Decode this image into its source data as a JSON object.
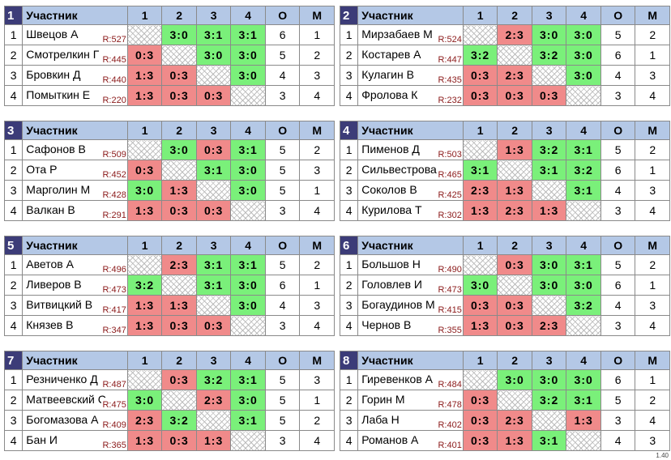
{
  "header": {
    "participant": "Участник",
    "cols": [
      "1",
      "2",
      "3",
      "4"
    ],
    "points": "О",
    "place": "М"
  },
  "groups": [
    {
      "num": "1",
      "rows": [
        {
          "n": "1",
          "name": "Швецов А",
          "rating": "R:527",
          "scores": [
            "",
            "3:0",
            "3:1",
            "3:1"
          ],
          "res": [
            "self",
            "win",
            "win",
            "win"
          ],
          "o": "6",
          "m": "1"
        },
        {
          "n": "2",
          "name": "Смотрелкин Г",
          "rating": "R:445",
          "scores": [
            "0:3",
            "",
            "3:0",
            "3:0"
          ],
          "res": [
            "loss",
            "self",
            "win",
            "win"
          ],
          "o": "5",
          "m": "2"
        },
        {
          "n": "3",
          "name": "Бровкин Д",
          "rating": "R:440",
          "scores": [
            "1:3",
            "0:3",
            "",
            "3:0"
          ],
          "res": [
            "loss",
            "loss",
            "self",
            "win"
          ],
          "o": "4",
          "m": "3"
        },
        {
          "n": "4",
          "name": "Помыткин Е",
          "rating": "R:220",
          "scores": [
            "1:3",
            "0:3",
            "0:3",
            ""
          ],
          "res": [
            "loss",
            "loss",
            "loss",
            "self"
          ],
          "o": "3",
          "m": "4"
        }
      ]
    },
    {
      "num": "2",
      "rows": [
        {
          "n": "1",
          "name": "Мирзабаев М",
          "rating": "R:524",
          "scores": [
            "",
            "2:3",
            "3:0",
            "3:0"
          ],
          "res": [
            "self",
            "loss",
            "win",
            "win"
          ],
          "o": "5",
          "m": "2"
        },
        {
          "n": "2",
          "name": "Костарев А",
          "rating": "R:447",
          "scores": [
            "3:2",
            "",
            "3:2",
            "3:0"
          ],
          "res": [
            "win",
            "self",
            "win",
            "win"
          ],
          "o": "6",
          "m": "1"
        },
        {
          "n": "3",
          "name": "Кулагин В",
          "rating": "R:435",
          "scores": [
            "0:3",
            "2:3",
            "",
            "3:0"
          ],
          "res": [
            "loss",
            "loss",
            "self",
            "win"
          ],
          "o": "4",
          "m": "3"
        },
        {
          "n": "4",
          "name": "Фролова К",
          "rating": "R:232",
          "scores": [
            "0:3",
            "0:3",
            "0:3",
            ""
          ],
          "res": [
            "loss",
            "loss",
            "loss",
            "self"
          ],
          "o": "3",
          "m": "4"
        }
      ]
    },
    {
      "num": "3",
      "rows": [
        {
          "n": "1",
          "name": "Сафонов В",
          "rating": "R:509",
          "scores": [
            "",
            "3:0",
            "0:3",
            "3:1"
          ],
          "res": [
            "self",
            "win",
            "loss",
            "win"
          ],
          "o": "5",
          "m": "2"
        },
        {
          "n": "2",
          "name": "Ота Р",
          "rating": "R:452",
          "scores": [
            "0:3",
            "",
            "3:1",
            "3:0"
          ],
          "res": [
            "loss",
            "self",
            "win",
            "win"
          ],
          "o": "5",
          "m": "3"
        },
        {
          "n": "3",
          "name": "Марголин М",
          "rating": "R:428",
          "scores": [
            "3:0",
            "1:3",
            "",
            "3:0"
          ],
          "res": [
            "win",
            "loss",
            "self",
            "win"
          ],
          "o": "5",
          "m": "1"
        },
        {
          "n": "4",
          "name": "Валкан В",
          "rating": "R:291",
          "scores": [
            "1:3",
            "0:3",
            "0:3",
            ""
          ],
          "res": [
            "loss",
            "loss",
            "loss",
            "self"
          ],
          "o": "3",
          "m": "4"
        }
      ]
    },
    {
      "num": "4",
      "rows": [
        {
          "n": "1",
          "name": "Пименов Д",
          "rating": "R:503",
          "scores": [
            "",
            "1:3",
            "3:2",
            "3:1"
          ],
          "res": [
            "self",
            "loss",
            "win",
            "win"
          ],
          "o": "5",
          "m": "2"
        },
        {
          "n": "2",
          "name": "Сильвестрова",
          "rating": "R:465",
          "scores": [
            "3:1",
            "",
            "3:1",
            "3:2"
          ],
          "res": [
            "win",
            "self",
            "win",
            "win"
          ],
          "o": "6",
          "m": "1"
        },
        {
          "n": "3",
          "name": "Соколов В",
          "rating": "R:425",
          "scores": [
            "2:3",
            "1:3",
            "",
            "3:1"
          ],
          "res": [
            "loss",
            "loss",
            "self",
            "win"
          ],
          "o": "4",
          "m": "3"
        },
        {
          "n": "4",
          "name": "Курилова Т",
          "rating": "R:302",
          "scores": [
            "1:3",
            "2:3",
            "1:3",
            ""
          ],
          "res": [
            "loss",
            "loss",
            "loss",
            "self"
          ],
          "o": "3",
          "m": "4"
        }
      ]
    },
    {
      "num": "5",
      "rows": [
        {
          "n": "1",
          "name": "Аветов А",
          "rating": "R:496",
          "scores": [
            "",
            "2:3",
            "3:1",
            "3:1"
          ],
          "res": [
            "self",
            "loss",
            "win",
            "win"
          ],
          "o": "5",
          "m": "2"
        },
        {
          "n": "2",
          "name": "Ливеров В",
          "rating": "R:473",
          "scores": [
            "3:2",
            "",
            "3:1",
            "3:0"
          ],
          "res": [
            "win",
            "self",
            "win",
            "win"
          ],
          "o": "6",
          "m": "1"
        },
        {
          "n": "3",
          "name": "Витвицкий В",
          "rating": "R:417",
          "scores": [
            "1:3",
            "1:3",
            "",
            "3:0"
          ],
          "res": [
            "loss",
            "loss",
            "self",
            "win"
          ],
          "o": "4",
          "m": "3"
        },
        {
          "n": "4",
          "name": "Князев В",
          "rating": "R:347",
          "scores": [
            "1:3",
            "0:3",
            "0:3",
            ""
          ],
          "res": [
            "loss",
            "loss",
            "loss",
            "self"
          ],
          "o": "3",
          "m": "4"
        }
      ]
    },
    {
      "num": "6",
      "rows": [
        {
          "n": "1",
          "name": "Большов Н",
          "rating": "R:490",
          "scores": [
            "",
            "0:3",
            "3:0",
            "3:1"
          ],
          "res": [
            "self",
            "loss",
            "win",
            "win"
          ],
          "o": "5",
          "m": "2"
        },
        {
          "n": "2",
          "name": "Головлев И",
          "rating": "R:473",
          "scores": [
            "3:0",
            "",
            "3:0",
            "3:0"
          ],
          "res": [
            "win",
            "self",
            "win",
            "win"
          ],
          "o": "6",
          "m": "1"
        },
        {
          "n": "3",
          "name": "Богаудинов М",
          "rating": "R:415",
          "scores": [
            "0:3",
            "0:3",
            "",
            "3:2"
          ],
          "res": [
            "loss",
            "loss",
            "self",
            "win"
          ],
          "o": "4",
          "m": "3"
        },
        {
          "n": "4",
          "name": "Чернов В",
          "rating": "R:355",
          "scores": [
            "1:3",
            "0:3",
            "2:3",
            ""
          ],
          "res": [
            "loss",
            "loss",
            "loss",
            "self"
          ],
          "o": "3",
          "m": "4"
        }
      ]
    },
    {
      "num": "7",
      "rows": [
        {
          "n": "1",
          "name": "Резниченко Д",
          "rating": "R:487",
          "scores": [
            "",
            "0:3",
            "3:2",
            "3:1"
          ],
          "res": [
            "self",
            "loss",
            "win",
            "win"
          ],
          "o": "5",
          "m": "3"
        },
        {
          "n": "2",
          "name": "Матвеевский С",
          "rating": "R:475",
          "scores": [
            "3:0",
            "",
            "2:3",
            "3:0"
          ],
          "res": [
            "win",
            "self",
            "loss",
            "win"
          ],
          "o": "5",
          "m": "1"
        },
        {
          "n": "3",
          "name": "Богомазова А",
          "rating": "R:409",
          "scores": [
            "2:3",
            "3:2",
            "",
            "3:1"
          ],
          "res": [
            "loss",
            "win",
            "self",
            "win"
          ],
          "o": "5",
          "m": "2"
        },
        {
          "n": "4",
          "name": "Бан И",
          "rating": "R:365",
          "scores": [
            "1:3",
            "0:3",
            "1:3",
            ""
          ],
          "res": [
            "loss",
            "loss",
            "loss",
            "self"
          ],
          "o": "3",
          "m": "4"
        }
      ]
    },
    {
      "num": "8",
      "rows": [
        {
          "n": "1",
          "name": "Гиревенков А",
          "rating": "R:484",
          "scores": [
            "",
            "3:0",
            "3:0",
            "3:0"
          ],
          "res": [
            "self",
            "win",
            "win",
            "win"
          ],
          "o": "6",
          "m": "1"
        },
        {
          "n": "2",
          "name": "Горин М",
          "rating": "R:478",
          "scores": [
            "0:3",
            "",
            "3:2",
            "3:1"
          ],
          "res": [
            "loss",
            "self",
            "win",
            "win"
          ],
          "o": "5",
          "m": "2"
        },
        {
          "n": "3",
          "name": "Лаба Н",
          "rating": "R:402",
          "scores": [
            "0:3",
            "2:3",
            "",
            "1:3"
          ],
          "res": [
            "loss",
            "loss",
            "self",
            "loss"
          ],
          "o": "3",
          "m": "4"
        },
        {
          "n": "4",
          "name": "Романов А",
          "rating": "R:401",
          "scores": [
            "0:3",
            "1:3",
            "3:1",
            ""
          ],
          "res": [
            "loss",
            "loss",
            "win",
            "self"
          ],
          "o": "4",
          "m": "3"
        }
      ]
    }
  ],
  "footer": "1.40",
  "colors": {
    "header_bg": "#b4c8e6",
    "group_badge": "#3c3c78",
    "win": "#7af07a",
    "loss": "#f08a8a",
    "rating": "#8b1a1a"
  }
}
